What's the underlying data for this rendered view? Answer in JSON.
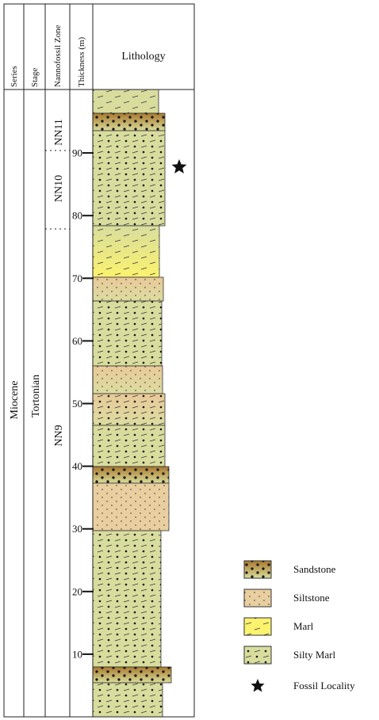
{
  "header": {
    "series": "Series",
    "stage": "Stage",
    "zone": "Nannofossil Zone",
    "thickness": "Thickness (m)",
    "lithology": "Lithology"
  },
  "column": {
    "series": "Miocene",
    "stage": "Tortonian",
    "zones": [
      "NN11",
      "NN10",
      "NN9"
    ],
    "thickness_ticks": [
      10,
      20,
      30,
      40,
      50,
      60,
      70,
      80,
      90
    ]
  },
  "legend": [
    "Sandstone",
    "Siltstone",
    "Marl",
    "Silty Marl",
    "Fossil Locality"
  ]
}
